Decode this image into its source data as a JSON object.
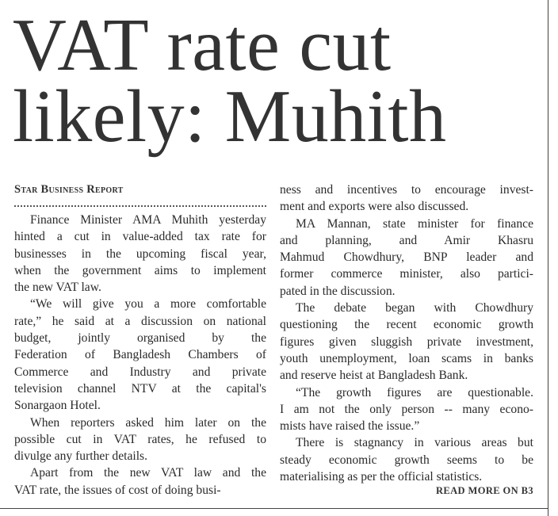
{
  "article": {
    "headline": [
      "VAT rate cut",
      "likely: Muhith"
    ],
    "byline": "Star Business Report",
    "columns": [
      {
        "paragraphs": [
          {
            "lines": [
              "Finance Minister AMA Muhith yesterday",
              "hinted a cut in value-added tax rate for",
              "businesses in the upcoming fiscal year,",
              "when the government aims to implement",
              "the new VAT law."
            ]
          },
          {
            "lines": [
              "“We will give you a more comfortable",
              "rate,” he said at a discussion on national",
              "budget, jointly organised by the",
              "Federation of Bangladesh Chambers of",
              "Commerce and Industry and private",
              "television channel NTV at the capital's",
              "Sonargaon Hotel."
            ]
          },
          {
            "lines": [
              "When reporters asked him later on the",
              "possible cut in VAT rates, he refused to",
              "divulge any further details."
            ]
          },
          {
            "lines": [
              "Apart from the new VAT law and the",
              "VAT rate, the issues of cost of doing busi-"
            ]
          }
        ]
      },
      {
        "paragraphs": [
          {
            "lines": [
              "ness and incentives to encourage invest-",
              "ment and exports were also discussed."
            ]
          },
          {
            "lines": [
              "MA Mannan, state minister for finance",
              "and planning, and Amir Khasru",
              "Mahmud Chowdhury, BNP leader and",
              "former commerce minister, also partici-",
              "pated in the discussion."
            ]
          },
          {
            "lines": [
              "The debate began with Chowdhury",
              "questioning the recent economic growth",
              "figures given sluggish private investment,",
              "youth unemployment, loan scams in banks",
              "and reserve heist at Bangladesh Bank."
            ]
          },
          {
            "lines": [
              "“The growth figures are questionable.",
              "I am not the only person -- many econo-",
              "mists have raised the issue.”"
            ]
          },
          {
            "lines": [
              "There is stagnancy in various areas but",
              "steady economic growth seems to be",
              "materialising as per the official statistics."
            ]
          }
        ]
      }
    ],
    "read_more": "READ MORE ON B3"
  }
}
